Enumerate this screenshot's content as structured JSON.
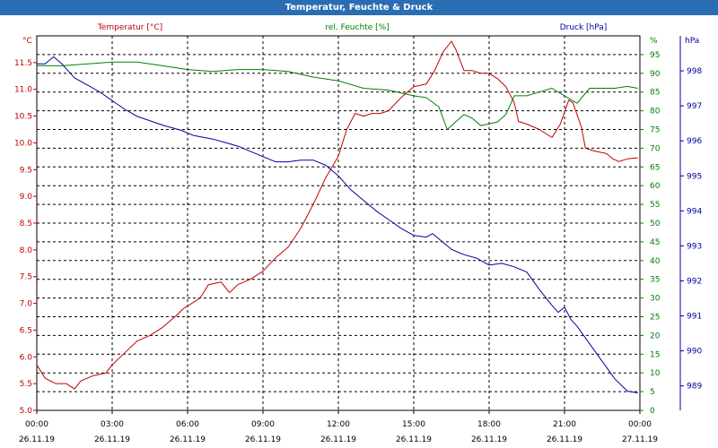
{
  "window": {
    "title": "Temperatur, Feuchte & Druck"
  },
  "colors": {
    "temperature": "#c00000",
    "humidity": "#008000",
    "pressure": "#0000a0",
    "titlebar": "#2a6db3",
    "grid": "#000000"
  },
  "chart_data": {
    "type": "line",
    "title": "Temperatur, Feuchte & Druck",
    "grid": true,
    "x": {
      "range": [
        "2019-11-26 00:00",
        "2019-11-27 00:00"
      ],
      "ticks": [
        {
          "time": "00:00",
          "date": "26.11.19"
        },
        {
          "time": "03:00",
          "date": "26.11.19"
        },
        {
          "time": "06:00",
          "date": "26.11.19"
        },
        {
          "time": "09:00",
          "date": "26.11.19"
        },
        {
          "time": "12:00",
          "date": "26.11.19"
        },
        {
          "time": "15:00",
          "date": "26.11.19"
        },
        {
          "time": "18:00",
          "date": "26.11.19"
        },
        {
          "time": "21:00",
          "date": "26.11.19"
        },
        {
          "time": "00:00",
          "date": "27.11.19"
        }
      ]
    },
    "axes": {
      "temperature": {
        "label": "Temperatur [°C]",
        "unit": "°C",
        "side": "left",
        "range": [
          5.0,
          12.0
        ],
        "ticks": [
          "5.0",
          "5.5",
          "6.0",
          "6.5",
          "7.0",
          "7.5",
          "8.0",
          "8.5",
          "9.0",
          "9.5",
          "10.0",
          "10.5",
          "11.0",
          "11.5"
        ]
      },
      "humidity": {
        "label": "rel. Feuchte [%]",
        "unit": "%",
        "side": "right",
        "range": [
          0,
          100
        ],
        "ticks": [
          "0",
          "5",
          "10",
          "15",
          "20",
          "25",
          "30",
          "35",
          "40",
          "45",
          "50",
          "55",
          "60",
          "65",
          "70",
          "75",
          "80",
          "85",
          "90",
          "95"
        ]
      },
      "pressure": {
        "label": "Druck [hPa]",
        "unit": "hPa",
        "side": "right-outer",
        "range": [
          988.3,
          999.0
        ],
        "ticks": [
          "989",
          "990",
          "991",
          "992",
          "993",
          "994",
          "995",
          "996",
          "997",
          "998"
        ]
      }
    },
    "series": [
      {
        "name": "Temperatur [°C]",
        "axis": "temperature",
        "color": "#c00000",
        "points": [
          [
            "00:00",
            5.85
          ],
          [
            "00:20",
            5.6
          ],
          [
            "00:45",
            5.5
          ],
          [
            "01:10",
            5.5
          ],
          [
            "01:30",
            5.4
          ],
          [
            "01:45",
            5.55
          ],
          [
            "02:15",
            5.65
          ],
          [
            "02:45",
            5.7
          ],
          [
            "03:00",
            5.85
          ],
          [
            "03:20",
            6.0
          ],
          [
            "03:40",
            6.15
          ],
          [
            "04:00",
            6.3
          ],
          [
            "04:30",
            6.4
          ],
          [
            "05:00",
            6.55
          ],
          [
            "05:30",
            6.75
          ],
          [
            "05:50",
            6.9
          ],
          [
            "06:10",
            7.0
          ],
          [
            "06:30",
            7.1
          ],
          [
            "06:50",
            7.35
          ],
          [
            "07:20",
            7.4
          ],
          [
            "07:40",
            7.2
          ],
          [
            "08:00",
            7.35
          ],
          [
            "08:30",
            7.45
          ],
          [
            "09:00",
            7.6
          ],
          [
            "09:30",
            7.85
          ],
          [
            "10:00",
            8.05
          ],
          [
            "10:30",
            8.4
          ],
          [
            "11:00",
            8.85
          ],
          [
            "11:30",
            9.35
          ],
          [
            "12:00",
            9.75
          ],
          [
            "12:20",
            10.25
          ],
          [
            "12:40",
            10.55
          ],
          [
            "13:00",
            10.5
          ],
          [
            "13:20",
            10.55
          ],
          [
            "13:40",
            10.55
          ],
          [
            "14:00",
            10.6
          ],
          [
            "14:30",
            10.85
          ],
          [
            "15:00",
            11.05
          ],
          [
            "15:30",
            11.1
          ],
          [
            "15:50",
            11.35
          ],
          [
            "16:10",
            11.7
          ],
          [
            "16:30",
            11.9
          ],
          [
            "16:40",
            11.75
          ],
          [
            "17:00",
            11.35
          ],
          [
            "17:20",
            11.35
          ],
          [
            "17:40",
            11.3
          ],
          [
            "18:00",
            11.3
          ],
          [
            "18:20",
            11.2
          ],
          [
            "18:40",
            11.05
          ],
          [
            "19:00",
            10.75
          ],
          [
            "19:10",
            10.4
          ],
          [
            "19:30",
            10.35
          ],
          [
            "20:00",
            10.25
          ],
          [
            "20:30",
            10.1
          ],
          [
            "20:50",
            10.35
          ],
          [
            "21:10",
            10.8
          ],
          [
            "21:20",
            10.75
          ],
          [
            "21:40",
            10.3
          ],
          [
            "21:50",
            9.9
          ],
          [
            "22:10",
            9.85
          ],
          [
            "22:40",
            9.8
          ],
          [
            "22:55",
            9.7
          ],
          [
            "23:10",
            9.65
          ],
          [
            "23:30",
            9.7
          ],
          [
            "23:55",
            9.72
          ]
        ]
      },
      {
        "name": "rel. Feuchte [%]",
        "axis": "humidity",
        "color": "#008000",
        "points": [
          [
            "00:00",
            92
          ],
          [
            "01:00",
            92
          ],
          [
            "02:00",
            92.5
          ],
          [
            "03:00",
            93
          ],
          [
            "04:00",
            93
          ],
          [
            "05:00",
            92
          ],
          [
            "06:00",
            91
          ],
          [
            "07:00",
            90.5
          ],
          [
            "08:00",
            91
          ],
          [
            "09:00",
            91
          ],
          [
            "10:00",
            90.5
          ],
          [
            "11:00",
            89
          ],
          [
            "12:00",
            88
          ],
          [
            "13:00",
            86
          ],
          [
            "14:00",
            85.5
          ],
          [
            "15:00",
            84
          ],
          [
            "15:30",
            83.5
          ],
          [
            "16:00",
            81
          ],
          [
            "16:20",
            75
          ],
          [
            "16:40",
            77
          ],
          [
            "17:00",
            79
          ],
          [
            "17:20",
            78
          ],
          [
            "17:40",
            76
          ],
          [
            "18:00",
            76.5
          ],
          [
            "18:20",
            77
          ],
          [
            "18:40",
            79
          ],
          [
            "19:00",
            84
          ],
          [
            "19:30",
            84
          ],
          [
            "20:00",
            85
          ],
          [
            "20:30",
            86
          ],
          [
            "21:00",
            84
          ],
          [
            "21:30",
            82
          ],
          [
            "22:00",
            86
          ],
          [
            "23:00",
            86
          ],
          [
            "23:30",
            86.5
          ],
          [
            "23:55",
            86
          ]
        ]
      },
      {
        "name": "Druck [hPa]",
        "axis": "pressure",
        "color": "#0000a0",
        "points": [
          [
            "00:00",
            998.2
          ],
          [
            "00:20",
            998.2
          ],
          [
            "00:40",
            998.4
          ],
          [
            "01:00",
            998.2
          ],
          [
            "01:30",
            997.8
          ],
          [
            "02:00",
            997.6
          ],
          [
            "02:30",
            997.4
          ],
          [
            "03:00",
            997.15
          ],
          [
            "03:30",
            996.9
          ],
          [
            "04:00",
            996.7
          ],
          [
            "05:00",
            996.45
          ],
          [
            "05:45",
            996.3
          ],
          [
            "06:15",
            996.15
          ],
          [
            "07:00",
            996.05
          ],
          [
            "07:30",
            995.95
          ],
          [
            "08:00",
            995.85
          ],
          [
            "08:30",
            995.7
          ],
          [
            "09:00",
            995.55
          ],
          [
            "09:30",
            995.4
          ],
          [
            "10:00",
            995.4
          ],
          [
            "10:30",
            995.45
          ],
          [
            "11:00",
            995.45
          ],
          [
            "11:30",
            995.3
          ],
          [
            "12:00",
            995.0
          ],
          [
            "12:30",
            994.6
          ],
          [
            "13:00",
            994.3
          ],
          [
            "13:30",
            994.0
          ],
          [
            "14:00",
            993.75
          ],
          [
            "14:30",
            993.5
          ],
          [
            "15:00",
            993.3
          ],
          [
            "15:30",
            993.25
          ],
          [
            "15:45",
            993.35
          ],
          [
            "16:00",
            993.2
          ],
          [
            "16:30",
            992.9
          ],
          [
            "17:00",
            992.75
          ],
          [
            "17:30",
            992.65
          ],
          [
            "18:00",
            992.45
          ],
          [
            "18:30",
            992.5
          ],
          [
            "19:00",
            992.4
          ],
          [
            "19:30",
            992.25
          ],
          [
            "20:00",
            991.75
          ],
          [
            "20:30",
            991.3
          ],
          [
            "20:45",
            991.1
          ],
          [
            "21:00",
            991.25
          ],
          [
            "21:15",
            990.9
          ],
          [
            "21:30",
            990.7
          ],
          [
            "22:00",
            990.2
          ],
          [
            "22:30",
            989.7
          ],
          [
            "23:00",
            989.2
          ],
          [
            "23:30",
            988.85
          ],
          [
            "23:55",
            988.8
          ]
        ]
      }
    ]
  }
}
